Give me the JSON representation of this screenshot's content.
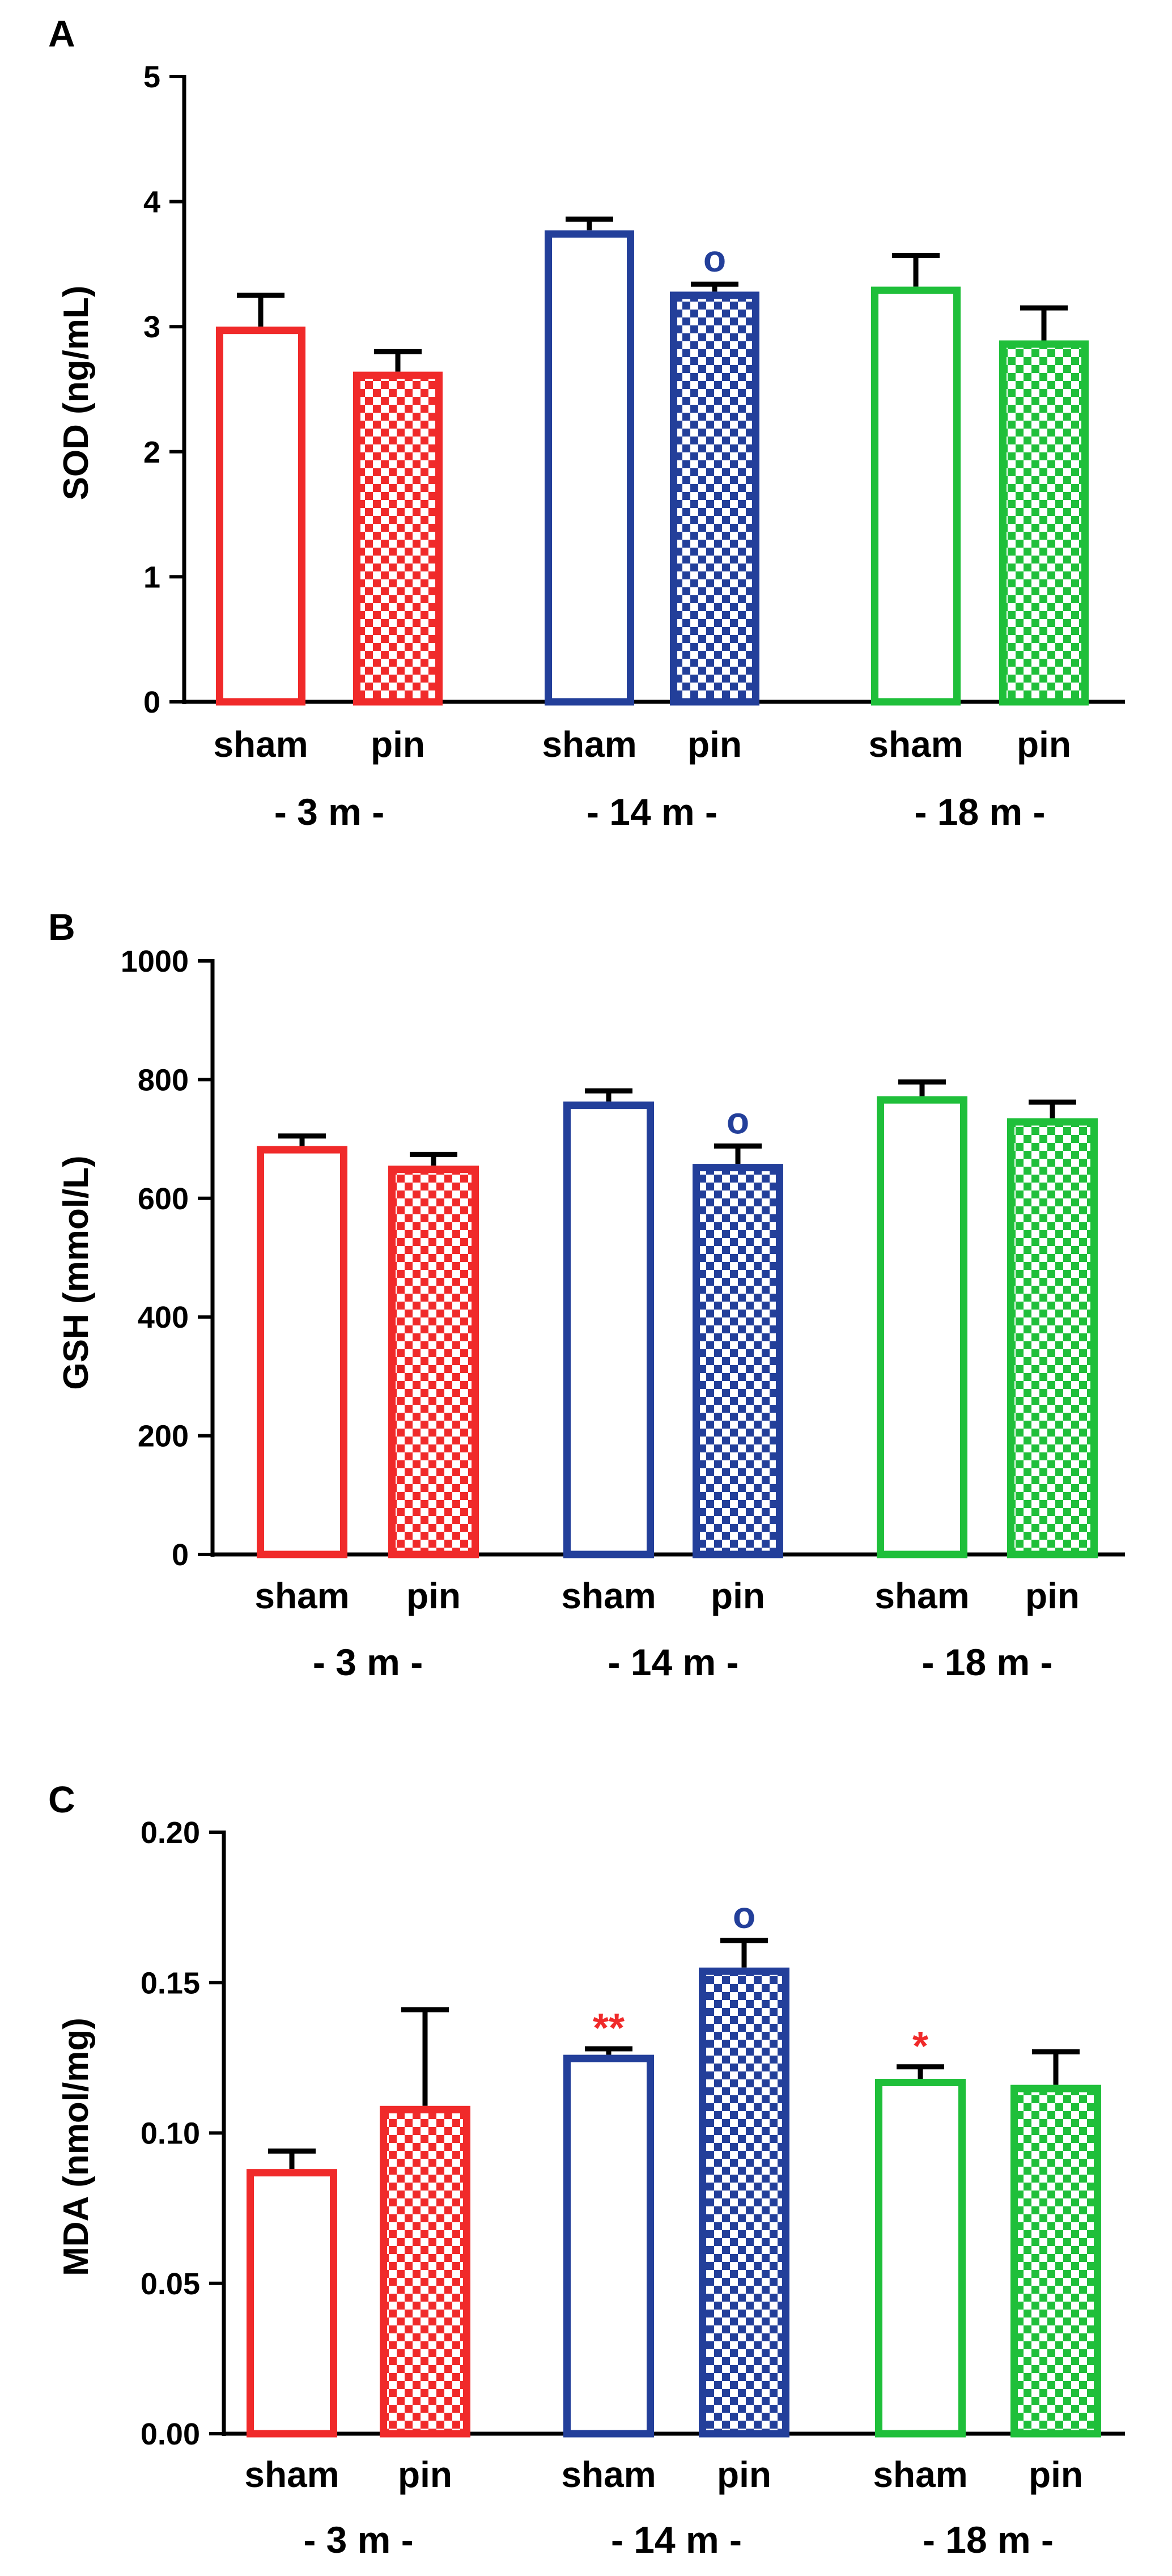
{
  "colors": {
    "red": "#f02a2a",
    "blue": "#233f9a",
    "green": "#1fbf3a",
    "axis": "#000000"
  },
  "chart_data": [
    {
      "panel": "A",
      "type": "bar",
      "ylabel": "SOD (ng/mL)",
      "ylim": [
        0,
        5
      ],
      "yticks": [
        0,
        1,
        2,
        3,
        4,
        5
      ],
      "ytick_labels": [
        "0",
        "1",
        "2",
        "3",
        "4",
        "5"
      ],
      "groups": [
        {
          "label": "- 3 m -",
          "color": "red",
          "bars": [
            {
              "label": "sham",
              "pattern": "open",
              "value": 3.0,
              "error": 0.25,
              "marker": ""
            },
            {
              "label": "pin",
              "pattern": "checker",
              "value": 2.64,
              "error": 0.16,
              "marker": ""
            }
          ]
        },
        {
          "label": "- 14 m -",
          "color": "blue",
          "bars": [
            {
              "label": "sham",
              "pattern": "open",
              "value": 3.77,
              "error": 0.09,
              "marker": ""
            },
            {
              "label": "pin",
              "pattern": "checker",
              "value": 3.28,
              "error": 0.06,
              "marker": "o"
            }
          ]
        },
        {
          "label": "- 18 m -",
          "color": "green",
          "bars": [
            {
              "label": "sham",
              "pattern": "open",
              "value": 3.32,
              "error": 0.25,
              "marker": ""
            },
            {
              "label": "pin",
              "pattern": "checker",
              "value": 2.89,
              "error": 0.26,
              "marker": ""
            }
          ]
        }
      ]
    },
    {
      "panel": "B",
      "type": "bar",
      "ylabel": "GSH (mmol/L)",
      "ylim": [
        0,
        1000
      ],
      "yticks": [
        0,
        200,
        400,
        600,
        800,
        1000
      ],
      "ytick_labels": [
        "0",
        "200",
        "400",
        "600",
        "800",
        "1000"
      ],
      "groups": [
        {
          "label": "- 3 m -",
          "color": "red",
          "bars": [
            {
              "label": "sham",
              "pattern": "open",
              "value": 688,
              "error": 17,
              "marker": ""
            },
            {
              "label": "pin",
              "pattern": "checker",
              "value": 655,
              "error": 19,
              "marker": ""
            }
          ]
        },
        {
          "label": "- 14 m -",
          "color": "blue",
          "bars": [
            {
              "label": "sham",
              "pattern": "open",
              "value": 763,
              "error": 18,
              "marker": ""
            },
            {
              "label": "pin",
              "pattern": "checker",
              "value": 658,
              "error": 30,
              "marker": "o"
            }
          ]
        },
        {
          "label": "- 18 m -",
          "color": "green",
          "bars": [
            {
              "label": "sham",
              "pattern": "open",
              "value": 772,
              "error": 24,
              "marker": ""
            },
            {
              "label": "pin",
              "pattern": "checker",
              "value": 735,
              "error": 27,
              "marker": ""
            }
          ]
        }
      ]
    },
    {
      "panel": "C",
      "type": "bar",
      "ylabel": "MDA (nmol/mg)",
      "ylim": [
        0,
        0.2
      ],
      "yticks": [
        0,
        0.05,
        0.1,
        0.15,
        0.2
      ],
      "ytick_labels": [
        "0.00",
        "0.05",
        "0.10",
        "0.15",
        "0.20"
      ],
      "groups": [
        {
          "label": "- 3 m -",
          "color": "red",
          "bars": [
            {
              "label": "sham",
              "pattern": "open",
              "value": 0.088,
              "error": 0.006,
              "marker": ""
            },
            {
              "label": "pin",
              "pattern": "checker",
              "value": 0.109,
              "error": 0.032,
              "marker": ""
            }
          ]
        },
        {
          "label": "- 14 m -",
          "color": "blue",
          "bars": [
            {
              "label": "sham",
              "pattern": "open",
              "value": 0.126,
              "error": 0.002,
              "marker": "**"
            },
            {
              "label": "pin",
              "pattern": "checker",
              "value": 0.155,
              "error": 0.009,
              "marker": "o"
            }
          ]
        },
        {
          "label": "- 18 m -",
          "color": "green",
          "bars": [
            {
              "label": "sham",
              "pattern": "open",
              "value": 0.118,
              "error": 0.004,
              "marker": "*"
            },
            {
              "label": "pin",
              "pattern": "checker",
              "value": 0.116,
              "error": 0.011,
              "marker": ""
            }
          ]
        }
      ]
    }
  ]
}
